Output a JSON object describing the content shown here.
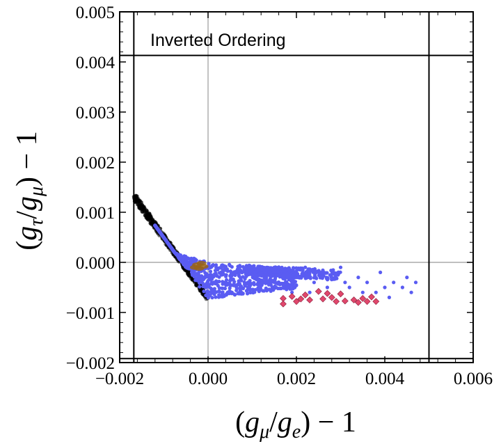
{
  "chart_data": {
    "type": "scatter",
    "title": "",
    "annotation": "Inverted Ordering",
    "xlabel": "(gμ/ge) − 1",
    "ylabel": "(gτ/gμ) − 1",
    "xlim": [
      -0.002,
      0.006
    ],
    "ylim": [
      -0.002,
      0.005
    ],
    "x_ticks": [
      -0.002,
      0.0,
      0.002,
      0.004,
      0.006
    ],
    "x_tick_labels": [
      "−0.002",
      "0.000",
      "0.002",
      "0.004",
      "0.006"
    ],
    "y_ticks": [
      -0.002,
      -0.001,
      0.0,
      0.001,
      0.002,
      0.003,
      0.004,
      0.005
    ],
    "y_tick_labels": [
      "−0.002",
      "−0.001",
      "0.000",
      "0.001",
      "0.002",
      "0.003",
      "0.004",
      "0.005"
    ],
    "bound_lines": {
      "x_min": -0.00168,
      "x_max": 0.005,
      "y_min": -0.00192,
      "y_max": 0.00413
    },
    "reference_lines": {
      "x": 0.0,
      "y": 0.0
    },
    "series": [
      {
        "name": "black",
        "color": "#000000",
        "shape": "circle",
        "band": [
          [
            -0.00168,
            0.00132
          ],
          [
            0.0,
            -0.00072
          ]
        ],
        "band_width": 0.00018,
        "count": 520
      },
      {
        "name": "blue",
        "color": "#5a5cf2",
        "shape": "circle",
        "points": [
          [
            0.0012,
            -0.0001
          ],
          [
            0.0014,
            -0.0002
          ],
          [
            0.0016,
            -0.0001
          ],
          [
            0.0018,
            -0.0003
          ],
          [
            0.002,
            -0.0002
          ],
          [
            0.0022,
            -0.0001
          ],
          [
            0.0024,
            -0.0004
          ],
          [
            0.0026,
            -0.0002
          ],
          [
            0.0028,
            -0.0003
          ],
          [
            0.003,
            -0.0001
          ],
          [
            0.0032,
            -0.0005
          ],
          [
            0.0034,
            -0.0003
          ],
          [
            0.0036,
            -0.0004
          ],
          [
            0.0038,
            -0.0006
          ],
          [
            0.004,
            -0.0005
          ],
          [
            0.0042,
            -0.0004
          ],
          [
            0.0044,
            -0.0005
          ],
          [
            0.0046,
            -0.0006
          ],
          [
            0.0047,
            -0.0004
          ],
          [
            0.0045,
            -0.0003
          ],
          [
            0.0041,
            -0.0007
          ],
          [
            0.0039,
            -0.0002
          ],
          [
            0.0035,
            -0.0006
          ],
          [
            0.0031,
            -0.0004
          ],
          [
            0.0027,
            -0.0005
          ],
          [
            0.0023,
            -0.0006
          ],
          [
            0.0019,
            -0.0006
          ],
          [
            0.0015,
            -0.0004
          ],
          [
            0.0011,
            -0.0003
          ],
          [
            0.0009,
            -0.0005
          ]
        ],
        "fan_count": 900
      },
      {
        "name": "orange",
        "color": "#9a6418",
        "shape": "circle",
        "points": [
          [
            -0.0003,
            -0.0001
          ],
          [
            -0.00025,
            -5e-05
          ],
          [
            -0.0002,
            -0.00012
          ],
          [
            -0.00015,
            -2e-05
          ],
          [
            -0.0001,
            -8e-05
          ]
        ]
      },
      {
        "name": "red",
        "color": "#e0476c",
        "shape": "diamond",
        "points": [
          [
            0.0017,
            -0.00072
          ],
          [
            0.0017,
            -0.00083
          ],
          [
            0.0019,
            -0.00068
          ],
          [
            0.002,
            -0.00078
          ],
          [
            0.0021,
            -0.00073
          ],
          [
            0.0022,
            -0.00065
          ],
          [
            0.0023,
            -0.00075
          ],
          [
            0.0025,
            -0.00058
          ],
          [
            0.0026,
            -0.00073
          ],
          [
            0.0027,
            -0.00062
          ],
          [
            0.0028,
            -0.0007
          ],
          [
            0.0029,
            -0.00078
          ],
          [
            0.003,
            -0.00063
          ],
          [
            0.0031,
            -0.00077
          ],
          [
            0.0033,
            -0.00075
          ],
          [
            0.0034,
            -0.0008
          ],
          [
            0.0035,
            -0.00072
          ],
          [
            0.0036,
            -0.00078
          ],
          [
            0.0037,
            -0.00069
          ],
          [
            0.0038,
            -0.00078
          ]
        ]
      }
    ]
  }
}
